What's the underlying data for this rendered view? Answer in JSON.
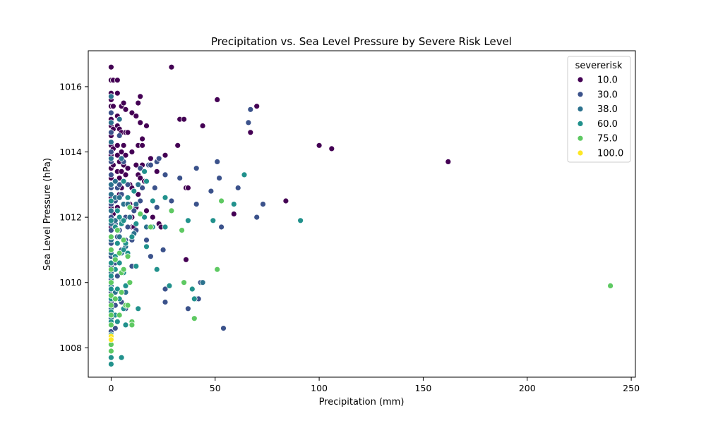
{
  "chart_data": {
    "type": "scatter",
    "title": "Precipitation vs. Sea Level Pressure by Severe Risk Level",
    "xlabel": "Precipitation (mm)",
    "ylabel": "Sea Level Pressure (hPa)",
    "xlim": [
      -11,
      252
    ],
    "ylim": [
      1007.1,
      1017.1
    ],
    "xticks": [
      0,
      50,
      100,
      150,
      200,
      250
    ],
    "yticks": [
      1008,
      1010,
      1012,
      1014,
      1016
    ],
    "grid": false,
    "legend": {
      "title": "severerisk",
      "position": "top-right"
    },
    "series": [
      {
        "name": "10.0",
        "color": "#440154",
        "points": [
          [
            0,
            1016.6
          ],
          [
            0,
            1016.2
          ],
          [
            0,
            1015.8
          ],
          [
            0,
            1015.6
          ],
          [
            0,
            1015.4
          ],
          [
            0,
            1015.0
          ],
          [
            0,
            1014.8
          ],
          [
            0,
            1014.5
          ],
          [
            0,
            1014.2
          ],
          [
            0,
            1013.9
          ],
          [
            0,
            1013.5
          ],
          [
            0,
            1013.2
          ],
          [
            0,
            1012.9
          ],
          [
            0,
            1012.6
          ],
          [
            0,
            1012.3
          ],
          [
            0,
            1011.7
          ],
          [
            1,
            1016.2
          ],
          [
            1,
            1015.4
          ],
          [
            1,
            1014.7
          ],
          [
            1,
            1014.1
          ],
          [
            1,
            1013.6
          ],
          [
            1,
            1012.5
          ],
          [
            1,
            1012.1
          ],
          [
            3,
            1016.2
          ],
          [
            3,
            1015.8
          ],
          [
            3,
            1015.1
          ],
          [
            3,
            1014.8
          ],
          [
            3,
            1014.2
          ],
          [
            3,
            1013.9
          ],
          [
            3,
            1013.4
          ],
          [
            3,
            1012.9
          ],
          [
            3,
            1012.3
          ],
          [
            4,
            1014.7
          ],
          [
            4,
            1013.7
          ],
          [
            4,
            1013.2
          ],
          [
            4,
            1012.7
          ],
          [
            5,
            1015.4
          ],
          [
            5,
            1014.6
          ],
          [
            5,
            1014.0
          ],
          [
            5,
            1013.4
          ],
          [
            5,
            1012.9
          ],
          [
            6,
            1015.5
          ],
          [
            6,
            1014.2
          ],
          [
            6,
            1013.6
          ],
          [
            6,
            1013.1
          ],
          [
            6,
            1012.4
          ],
          [
            7,
            1015.3
          ],
          [
            7,
            1014.6
          ],
          [
            7,
            1013.9
          ],
          [
            7,
            1013.3
          ],
          [
            8,
            1014.6
          ],
          [
            8,
            1013.5
          ],
          [
            8,
            1012.4
          ],
          [
            9,
            1013.0
          ],
          [
            9,
            1012.4
          ],
          [
            10,
            1015.2
          ],
          [
            10,
            1014.0
          ],
          [
            10,
            1012.9
          ],
          [
            10,
            1012.0
          ],
          [
            10,
            1011.7
          ],
          [
            11,
            1011.7
          ],
          [
            12,
            1015.1
          ],
          [
            12,
            1013.6
          ],
          [
            12,
            1012.3
          ],
          [
            13,
            1015.5
          ],
          [
            13,
            1014.2
          ],
          [
            13,
            1013.3
          ],
          [
            13,
            1012.7
          ],
          [
            14,
            1015.7
          ],
          [
            14,
            1014.9
          ],
          [
            14,
            1013.2
          ],
          [
            15,
            1014.4
          ],
          [
            15,
            1014.2
          ],
          [
            15,
            1013.6
          ],
          [
            16,
            1013.1
          ],
          [
            17,
            1014.8
          ],
          [
            17,
            1012.2
          ],
          [
            19,
            1013.8
          ],
          [
            20,
            1012.0
          ],
          [
            20,
            1011.7
          ],
          [
            22,
            1013.4
          ],
          [
            23,
            1011.8
          ],
          [
            24,
            1011.7
          ],
          [
            26,
            1013.9
          ],
          [
            29,
            1016.6
          ],
          [
            32,
            1014.2
          ],
          [
            33,
            1015.0
          ],
          [
            35,
            1015.0
          ],
          [
            36,
            1012.9
          ],
          [
            36,
            1010.7
          ],
          [
            37,
            1012.9
          ],
          [
            44,
            1014.8
          ],
          [
            51,
            1015.6
          ],
          [
            59,
            1012.1
          ],
          [
            67,
            1014.6
          ],
          [
            70,
            1015.4
          ],
          [
            84,
            1012.5
          ],
          [
            100,
            1014.2
          ],
          [
            106,
            1014.1
          ],
          [
            162,
            1013.7
          ]
        ]
      },
      {
        "name": "30.0",
        "color": "#3b528b",
        "points": [
          [
            0,
            1015.2
          ],
          [
            0,
            1014.6
          ],
          [
            0,
            1014.0
          ],
          [
            0,
            1013.7
          ],
          [
            0,
            1013.3
          ],
          [
            0,
            1012.9
          ],
          [
            0,
            1012.4
          ],
          [
            0,
            1012.0
          ],
          [
            0,
            1011.6
          ],
          [
            0,
            1011.2
          ],
          [
            0,
            1010.8
          ],
          [
            0,
            1010.5
          ],
          [
            0,
            1010.1
          ],
          [
            0,
            1009.7
          ],
          [
            0,
            1009.4
          ],
          [
            0,
            1009.0
          ],
          [
            0,
            1008.7
          ],
          [
            0,
            1008.5
          ],
          [
            2,
            1012.5
          ],
          [
            2,
            1011.8
          ],
          [
            2,
            1010.6
          ],
          [
            2,
            1009.3
          ],
          [
            2,
            1008.6
          ],
          [
            3,
            1012.9
          ],
          [
            3,
            1011.4
          ],
          [
            3,
            1010.2
          ],
          [
            4,
            1014.5
          ],
          [
            4,
            1013.0
          ],
          [
            4,
            1011.6
          ],
          [
            5,
            1012.7
          ],
          [
            5,
            1011.0
          ],
          [
            5,
            1009.4
          ],
          [
            6,
            1013.7
          ],
          [
            6,
            1012.4
          ],
          [
            6,
            1009.2
          ],
          [
            7,
            1012.0
          ],
          [
            7,
            1011.3
          ],
          [
            7,
            1009.2
          ],
          [
            8,
            1013.0
          ],
          [
            8,
            1011.7
          ],
          [
            9,
            1012.3
          ],
          [
            10,
            1011.3
          ],
          [
            10,
            1010.5
          ],
          [
            11,
            1012.8
          ],
          [
            11,
            1012.2
          ],
          [
            12,
            1011.6
          ],
          [
            14,
            1013.5
          ],
          [
            14,
            1012.5
          ],
          [
            15,
            1012.9
          ],
          [
            17,
            1011.3
          ],
          [
            18,
            1013.6
          ],
          [
            19,
            1013.6
          ],
          [
            19,
            1010.8
          ],
          [
            21,
            1012.9
          ],
          [
            22,
            1013.7
          ],
          [
            22,
            1012.3
          ],
          [
            23,
            1013.8
          ],
          [
            25,
            1011.0
          ],
          [
            26,
            1013.3
          ],
          [
            26,
            1009.8
          ],
          [
            26,
            1009.4
          ],
          [
            29,
            1012.5
          ],
          [
            33,
            1013.2
          ],
          [
            37,
            1009.2
          ],
          [
            41,
            1013.5
          ],
          [
            41,
            1012.4
          ],
          [
            41,
            1009.5
          ],
          [
            42,
            1009.5
          ],
          [
            43,
            1010.0
          ],
          [
            48,
            1012.8
          ],
          [
            51,
            1013.7
          ],
          [
            52,
            1013.2
          ],
          [
            53,
            1011.7
          ],
          [
            54,
            1008.6
          ],
          [
            61,
            1012.9
          ],
          [
            66,
            1014.9
          ],
          [
            67,
            1015.3
          ],
          [
            70,
            1012.0
          ],
          [
            73,
            1012.4
          ]
        ]
      },
      {
        "name": "38.0",
        "color": "#2c728e",
        "points": [
          [
            0,
            1015.7
          ],
          [
            0,
            1014.9
          ],
          [
            0,
            1014.3
          ],
          [
            0,
            1013.8
          ],
          [
            0,
            1013.0
          ],
          [
            0,
            1012.7
          ],
          [
            0,
            1012.2
          ],
          [
            0,
            1011.8
          ],
          [
            0,
            1011.3
          ],
          [
            0,
            1010.9
          ],
          [
            0,
            1010.3
          ],
          [
            0,
            1009.9
          ],
          [
            0,
            1009.6
          ],
          [
            0,
            1009.2
          ],
          [
            0,
            1008.9
          ],
          [
            2,
            1013.1
          ],
          [
            2,
            1012.6
          ],
          [
            2,
            1011.9
          ],
          [
            2,
            1009.7
          ],
          [
            4,
            1015.0
          ],
          [
            4,
            1012.6
          ],
          [
            4,
            1011.4
          ],
          [
            5,
            1013.8
          ],
          [
            5,
            1011.9
          ],
          [
            5,
            1010.9
          ],
          [
            6,
            1012.4
          ],
          [
            6,
            1010.3
          ],
          [
            7,
            1011.1
          ],
          [
            7,
            1009.7
          ],
          [
            8,
            1012.4
          ],
          [
            9,
            1012.0
          ],
          [
            11,
            1011.5
          ],
          [
            12,
            1012.4
          ],
          [
            13,
            1013.0
          ],
          [
            17,
            1011.7
          ],
          [
            44,
            1010.0
          ]
        ]
      },
      {
        "name": "60.0",
        "color": "#21918c",
        "points": [
          [
            0,
            1012.5
          ],
          [
            0,
            1011.9
          ],
          [
            0,
            1011.4
          ],
          [
            0,
            1011.0
          ],
          [
            0,
            1010.6
          ],
          [
            0,
            1010.2
          ],
          [
            0,
            1009.8
          ],
          [
            0,
            1009.5
          ],
          [
            0,
            1009.1
          ],
          [
            0,
            1008.8
          ],
          [
            0,
            1008.4
          ],
          [
            0,
            1008.1
          ],
          [
            0,
            1007.7
          ],
          [
            0,
            1007.5
          ],
          [
            2,
            1011.7
          ],
          [
            2,
            1010.8
          ],
          [
            2,
            1010.4
          ],
          [
            2,
            1009.0
          ],
          [
            3,
            1012.2
          ],
          [
            3,
            1011.2
          ],
          [
            3,
            1009.8
          ],
          [
            3,
            1008.8
          ],
          [
            4,
            1012.0
          ],
          [
            4,
            1010.6
          ],
          [
            4,
            1009.5
          ],
          [
            5,
            1011.8
          ],
          [
            5,
            1010.3
          ],
          [
            5,
            1007.7
          ],
          [
            6,
            1013.1
          ],
          [
            6,
            1011.9
          ],
          [
            6,
            1011.0
          ],
          [
            6,
            1010.3
          ],
          [
            6,
            1009.2
          ],
          [
            7,
            1011.2
          ],
          [
            7,
            1009.9
          ],
          [
            7,
            1008.7
          ],
          [
            8,
            1012.6
          ],
          [
            8,
            1010.9
          ],
          [
            10,
            1011.4
          ],
          [
            11,
            1012.8
          ],
          [
            12,
            1011.8
          ],
          [
            12,
            1010.5
          ],
          [
            13,
            1009.2
          ],
          [
            16,
            1013.4
          ],
          [
            16,
            1012.0
          ],
          [
            17,
            1013.1
          ],
          [
            17,
            1011.1
          ],
          [
            20,
            1012.5
          ],
          [
            20,
            1011.7
          ],
          [
            22,
            1010.4
          ],
          [
            26,
            1012.6
          ],
          [
            26,
            1011.7
          ],
          [
            28,
            1009.9
          ],
          [
            37,
            1011.9
          ],
          [
            39,
            1009.8
          ],
          [
            40,
            1009.5
          ],
          [
            49,
            1011.9
          ],
          [
            59,
            1012.4
          ],
          [
            64,
            1013.3
          ],
          [
            91,
            1011.9
          ]
        ]
      },
      {
        "name": "75.0",
        "color": "#5ec962",
        "points": [
          [
            0,
            1011.4
          ],
          [
            0,
            1011.0
          ],
          [
            0,
            1010.4
          ],
          [
            0,
            1010.0
          ],
          [
            0,
            1009.6
          ],
          [
            0,
            1009.3
          ],
          [
            0,
            1009.0
          ],
          [
            0,
            1008.7
          ],
          [
            0,
            1008.3
          ],
          [
            0,
            1008.1
          ],
          [
            0,
            1007.9
          ],
          [
            2,
            1010.7
          ],
          [
            2,
            1009.5
          ],
          [
            3,
            1011.6
          ],
          [
            4,
            1010.9
          ],
          [
            4,
            1009.0
          ],
          [
            5,
            1010.3
          ],
          [
            5,
            1009.7
          ],
          [
            6,
            1010.4
          ],
          [
            6,
            1011.3
          ],
          [
            7,
            1009.3
          ],
          [
            8,
            1010.8
          ],
          [
            8,
            1009.3
          ],
          [
            9,
            1012.3
          ],
          [
            9,
            1010.0
          ],
          [
            10,
            1008.8
          ],
          [
            10,
            1008.7
          ],
          [
            14,
            1012.1
          ],
          [
            19,
            1011.7
          ],
          [
            29,
            1012.2
          ],
          [
            34,
            1011.6
          ],
          [
            35,
            1010.0
          ],
          [
            40,
            1008.9
          ],
          [
            51,
            1010.4
          ],
          [
            53,
            1012.5
          ],
          [
            240,
            1009.9
          ]
        ]
      },
      {
        "name": "100.0",
        "color": "#fde725",
        "points": [
          [
            0,
            1008.35
          ],
          [
            0,
            1008.25
          ]
        ]
      }
    ]
  }
}
